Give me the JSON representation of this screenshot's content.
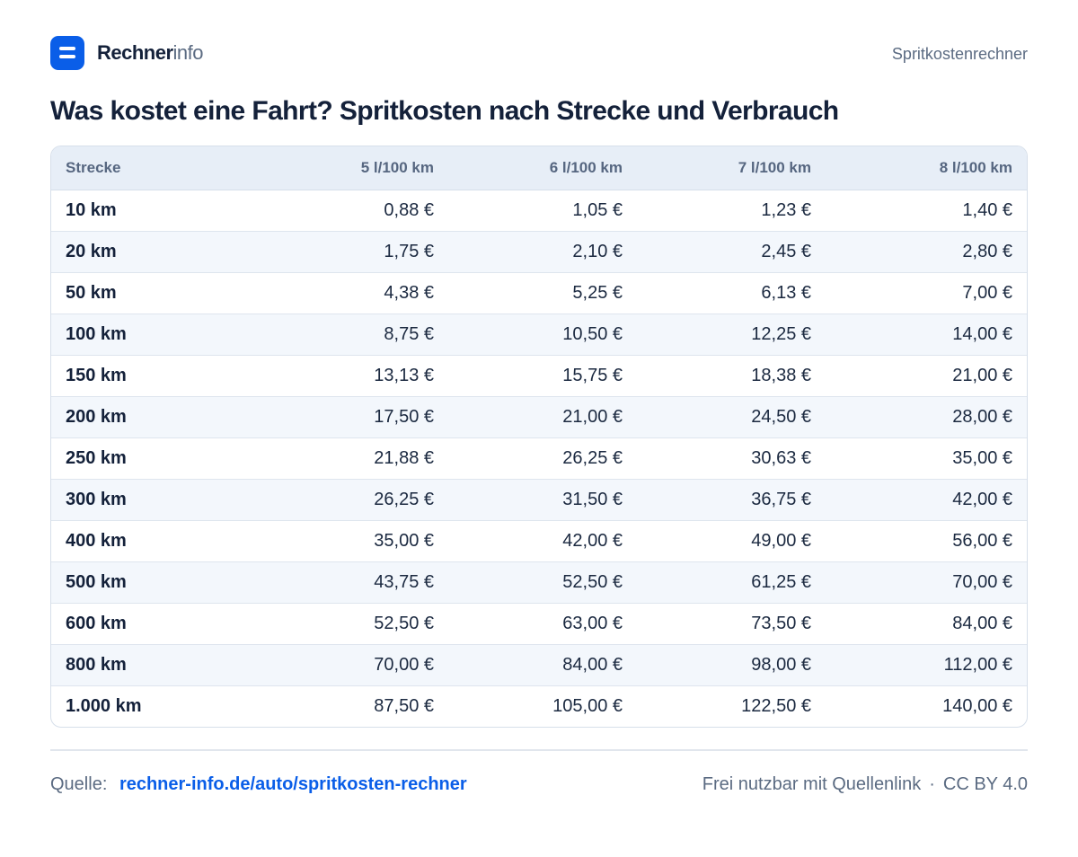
{
  "header": {
    "brand_strong": "Rechner",
    "brand_light": "info",
    "right_label": "Spritkostenrechner"
  },
  "title": "Was kostet eine Fahrt? Spritkosten nach Strecke und Verbrauch",
  "table": {
    "columns": [
      "Strecke",
      "5 l/100 km",
      "6 l/100 km",
      "7 l/100 km",
      "8 l/100 km"
    ],
    "rows": [
      [
        "10 km",
        "0,88 €",
        "1,05 €",
        "1,23 €",
        "1,40 €"
      ],
      [
        "20 km",
        "1,75 €",
        "2,10 €",
        "2,45 €",
        "2,80 €"
      ],
      [
        "50 km",
        "4,38 €",
        "5,25 €",
        "6,13 €",
        "7,00 €"
      ],
      [
        "100 km",
        "8,75 €",
        "10,50 €",
        "12,25 €",
        "14,00 €"
      ],
      [
        "150 km",
        "13,13 €",
        "15,75 €",
        "18,38 €",
        "21,00 €"
      ],
      [
        "200 km",
        "17,50 €",
        "21,00 €",
        "24,50 €",
        "28,00 €"
      ],
      [
        "250 km",
        "21,88 €",
        "26,25 €",
        "30,63 €",
        "35,00 €"
      ],
      [
        "300 km",
        "26,25 €",
        "31,50 €",
        "36,75 €",
        "42,00 €"
      ],
      [
        "400 km",
        "35,00 €",
        "42,00 €",
        "49,00 €",
        "56,00 €"
      ],
      [
        "500 km",
        "43,75 €",
        "52,50 €",
        "61,25 €",
        "70,00 €"
      ],
      [
        "600 km",
        "52,50 €",
        "63,00 €",
        "73,50 €",
        "84,00 €"
      ],
      [
        "800 km",
        "70,00 €",
        "84,00 €",
        "98,00 €",
        "112,00 €"
      ],
      [
        "1.000 km",
        "87,50 €",
        "105,00 €",
        "122,50 €",
        "140,00 €"
      ]
    ]
  },
  "footer": {
    "source_label": "Quelle:",
    "source_link": "rechner-info.de/auto/spritkosten-rechner",
    "usage": "Frei nutzbar mit Quellenlink",
    "separator": "·",
    "license": "CC BY 4.0"
  },
  "colors": {
    "accent": "#0a5ee8",
    "text": "#14213a",
    "muted": "#5b6b82",
    "header_bg": "#e7eef7",
    "row_alt_bg": "#f3f7fc"
  },
  "icons": {
    "logo": "menu-bars-icon"
  }
}
